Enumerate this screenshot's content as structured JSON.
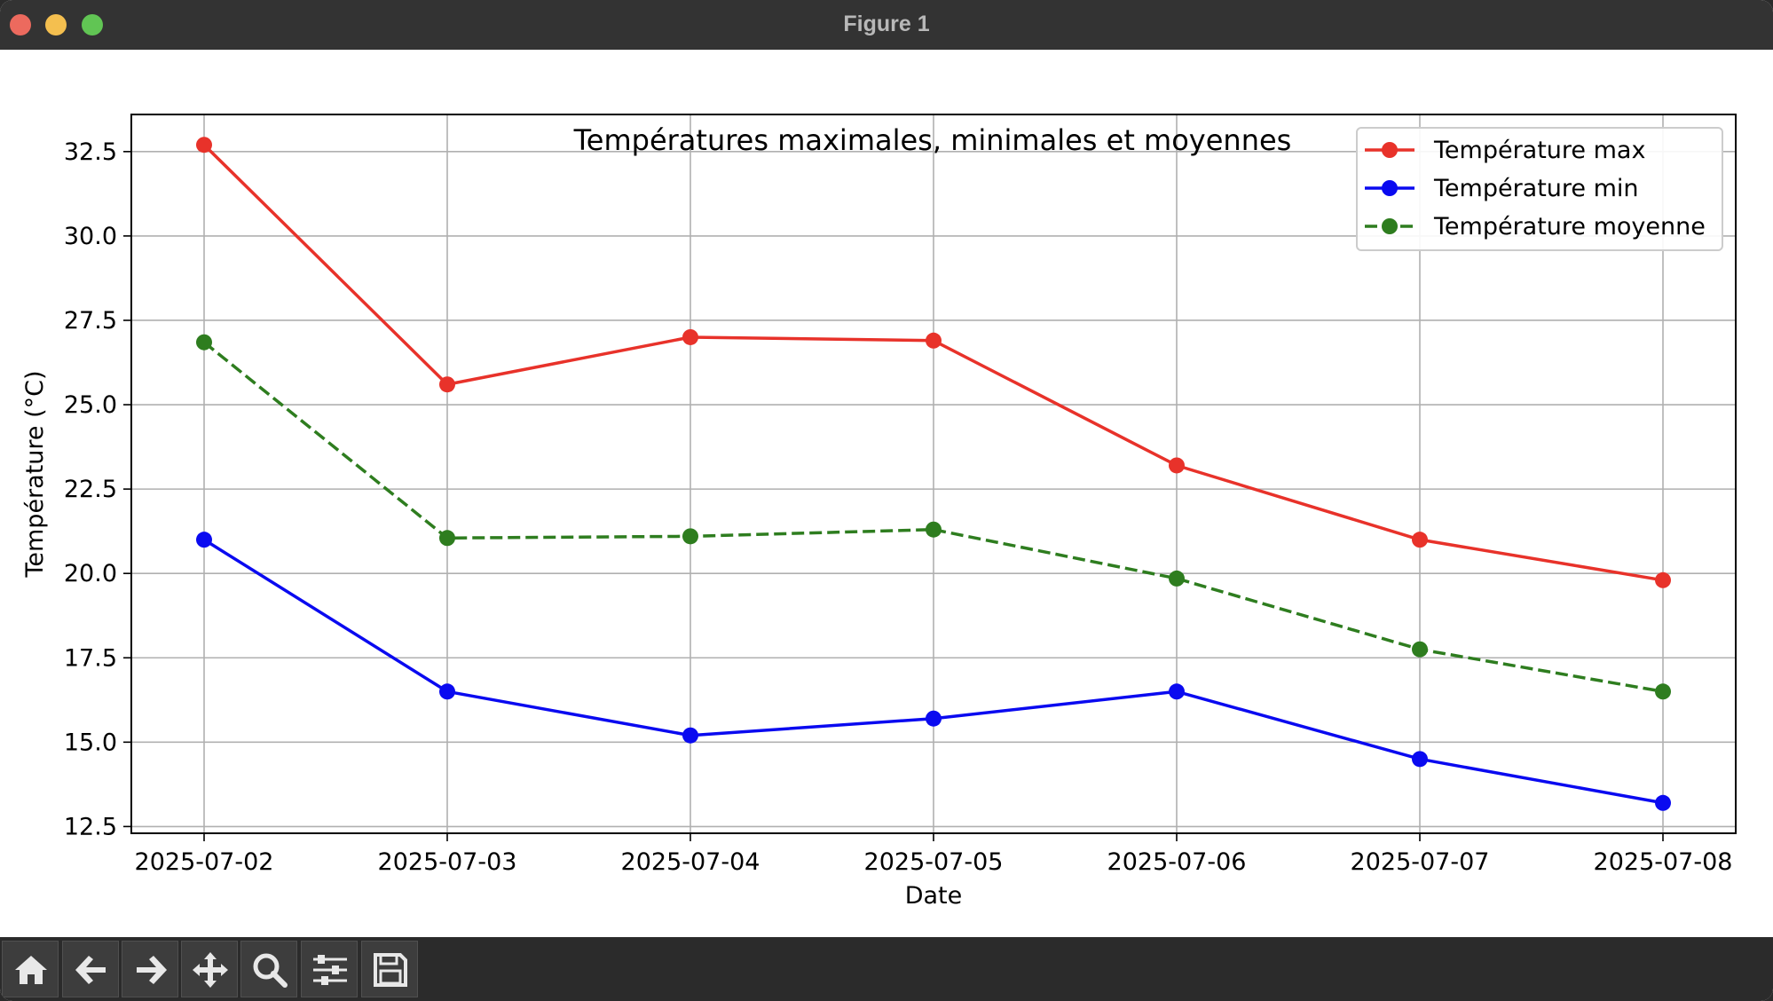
{
  "window": {
    "title": "Figure 1"
  },
  "toolbar": {
    "buttons": [
      {
        "name": "home-button",
        "icon": "home-icon"
      },
      {
        "name": "back-button",
        "icon": "arrow-left-icon"
      },
      {
        "name": "forward-button",
        "icon": "arrow-right-icon"
      },
      {
        "name": "pan-button",
        "icon": "move-icon"
      },
      {
        "name": "zoom-button",
        "icon": "magnifier-icon"
      },
      {
        "name": "configure-subplots-button",
        "icon": "sliders-icon"
      },
      {
        "name": "save-button",
        "icon": "floppy-disk-icon"
      }
    ]
  },
  "chart_data": {
    "type": "line",
    "title": "Températures maximales, minimales et moyennes",
    "xlabel": "Date",
    "ylabel": "Température (°C)",
    "categories": [
      "2025-07-02",
      "2025-07-03",
      "2025-07-04",
      "2025-07-05",
      "2025-07-06",
      "2025-07-07",
      "2025-07-08"
    ],
    "ylim": [
      12.3,
      33.6
    ],
    "yticks": [
      "12.5",
      "15.0",
      "17.5",
      "20.0",
      "22.5",
      "25.0",
      "27.5",
      "30.0",
      "32.5"
    ],
    "grid": true,
    "legend_position": "top-right",
    "series": [
      {
        "name": "Température max",
        "color": "#e8322a",
        "style": "solid",
        "values": [
          32.7,
          25.6,
          27.0,
          26.9,
          23.2,
          21.0,
          19.8
        ]
      },
      {
        "name": "Température min",
        "color": "#0a0af0",
        "style": "solid",
        "values": [
          21.0,
          16.5,
          15.2,
          15.7,
          16.5,
          14.5,
          13.2
        ]
      },
      {
        "name": "Température moyenne",
        "color": "#2e7d1f",
        "style": "dashed",
        "values": [
          26.85,
          21.05,
          21.1,
          21.3,
          19.85,
          17.75,
          16.5
        ]
      }
    ]
  }
}
